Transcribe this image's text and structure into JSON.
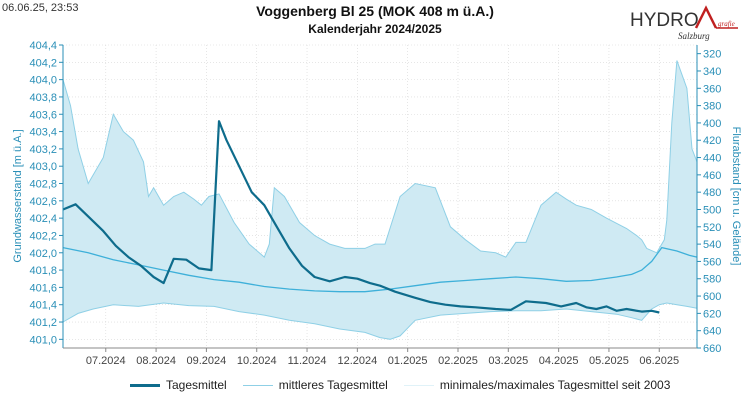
{
  "header": {
    "timestamp": "06.06.25, 23:53",
    "title": "Voggenberg Bl 25 (MOK 408 m ü.A.)",
    "subtitle": "Kalenderjahr 2024/2025"
  },
  "logo": {
    "text_main": "HYDRO",
    "text_sub": "grafie",
    "text_region": "Salzburg"
  },
  "colors": {
    "tagesmittel": "#0e6c8c",
    "mittleres": "#3eb0d9",
    "band_fill": "#cfeaf3",
    "band_line": "#8fd0e6",
    "axis": "#2a8fb7",
    "grid": "#d6d6d6"
  },
  "chart_data": {
    "type": "line",
    "ylabel": "Grundwasserstand [m ü.A.]",
    "y2label": "Flurabstand [cm u. Gelände]",
    "ylim": [
      400.9,
      404.4
    ],
    "y2lim": [
      310,
      660
    ],
    "xlim": [
      0,
      12.6
    ],
    "yticks": [
      "401,0",
      "401,2",
      "401,4",
      "401,6",
      "401,8",
      "402,0",
      "402,2",
      "402,4",
      "402,6",
      "402,8",
      "403,0",
      "403,2",
      "403,4",
      "403,6",
      "403,8",
      "404,0",
      "404,2",
      "404,4"
    ],
    "y2ticks": [
      "320",
      "340",
      "360",
      "380",
      "400",
      "420",
      "440",
      "460",
      "480",
      "500",
      "520",
      "540",
      "560",
      "580",
      "600",
      "620",
      "640",
      "660"
    ],
    "xticks": [
      "07.2024",
      "08.2024",
      "09.2024",
      "10.2024",
      "11.2024",
      "12.2024",
      "01.2025",
      "02.2025",
      "03.2025",
      "04.2025",
      "05.2025",
      "06.2025"
    ],
    "xtick_positions": [
      0.85,
      1.85,
      2.85,
      3.85,
      4.85,
      5.85,
      6.85,
      7.85,
      8.85,
      9.85,
      10.85,
      11.85
    ],
    "legend": [
      "Tagesmittel",
      "mittleres Tagesmittel",
      "minimales/maximales Tagesmittel seit 2003"
    ],
    "series": [
      {
        "name": "Tagesmittel",
        "x": [
          0.0,
          0.25,
          0.5,
          0.8,
          1.05,
          1.3,
          1.55,
          1.8,
          2.0,
          2.2,
          2.45,
          2.7,
          2.95,
          3.1,
          3.25,
          3.5,
          3.75,
          4.0,
          4.25,
          4.5,
          4.75,
          5.0,
          5.3,
          5.6,
          5.85,
          6.1,
          6.3,
          6.6,
          7.0,
          7.3,
          7.6,
          7.9,
          8.2,
          8.6,
          8.9,
          9.2,
          9.6,
          9.9,
          10.2,
          10.4,
          10.6,
          10.8,
          11.0,
          11.2,
          11.5,
          11.7,
          11.85
        ],
        "y": [
          402.5,
          402.56,
          402.42,
          402.25,
          402.08,
          401.95,
          401.85,
          401.72,
          401.65,
          401.93,
          401.92,
          401.82,
          401.8,
          403.52,
          403.3,
          403.0,
          402.7,
          402.55,
          402.3,
          402.05,
          401.85,
          401.72,
          401.67,
          401.72,
          401.7,
          401.65,
          401.62,
          401.55,
          401.48,
          401.43,
          401.4,
          401.38,
          401.37,
          401.35,
          401.34,
          401.44,
          401.42,
          401.38,
          401.42,
          401.37,
          401.35,
          401.38,
          401.33,
          401.35,
          401.32,
          401.33,
          401.31
        ]
      },
      {
        "name": "mittleres Tagesmittel",
        "x": [
          0.0,
          0.5,
          1.0,
          1.5,
          2.0,
          2.5,
          3.0,
          3.5,
          4.0,
          4.5,
          5.0,
          5.5,
          6.0,
          6.5,
          7.0,
          7.5,
          8.0,
          8.5,
          9.0,
          9.5,
          10.0,
          10.5,
          11.0,
          11.3,
          11.5,
          11.7,
          11.9,
          12.2,
          12.45,
          12.6
        ],
        "y": [
          402.06,
          402.0,
          401.92,
          401.86,
          401.8,
          401.74,
          401.69,
          401.66,
          401.61,
          401.58,
          401.56,
          401.55,
          401.55,
          401.58,
          401.62,
          401.66,
          401.68,
          401.7,
          401.72,
          401.7,
          401.67,
          401.68,
          401.72,
          401.75,
          401.8,
          401.9,
          402.06,
          402.02,
          401.97,
          401.95
        ]
      }
    ],
    "band": {
      "name": "minimales/maximales Tagesmittel seit 2003",
      "x_max": [
        0.0,
        0.15,
        0.3,
        0.5,
        0.8,
        1.0,
        1.2,
        1.4,
        1.6,
        1.7,
        1.8,
        2.0,
        2.2,
        2.4,
        2.6,
        2.75,
        2.9,
        3.1,
        3.4,
        3.7,
        4.0,
        4.1,
        4.2,
        4.4,
        4.7,
        5.0,
        5.3,
        5.6,
        5.8,
        6.0,
        6.2,
        6.4,
        6.7,
        7.0,
        7.4,
        7.7,
        8.0,
        8.3,
        8.6,
        8.8,
        9.0,
        9.2,
        9.5,
        9.8,
        10.0,
        10.2,
        10.5,
        10.8,
        11.2,
        11.4,
        11.5,
        11.6,
        11.8,
        11.95,
        12.0,
        12.1,
        12.2,
        12.4,
        12.5,
        12.6
      ],
      "y_max": [
        404.0,
        403.7,
        403.2,
        402.8,
        403.1,
        403.6,
        403.4,
        403.3,
        403.05,
        402.65,
        402.75,
        402.55,
        402.65,
        402.7,
        402.62,
        402.55,
        402.65,
        402.68,
        402.35,
        402.1,
        401.95,
        402.1,
        402.75,
        402.65,
        402.35,
        402.2,
        402.1,
        402.05,
        402.05,
        402.05,
        402.1,
        402.1,
        402.65,
        402.8,
        402.75,
        402.3,
        402.15,
        402.02,
        402.0,
        401.95,
        402.12,
        402.12,
        402.55,
        402.7,
        402.62,
        402.55,
        402.5,
        402.4,
        402.28,
        402.2,
        402.15,
        402.05,
        402.0,
        402.15,
        402.38,
        403.5,
        404.22,
        403.9,
        403.2,
        403.05
      ],
      "x_min": [
        0.0,
        0.3,
        0.6,
        1.0,
        1.5,
        2.0,
        2.5,
        3.0,
        3.5,
        4.0,
        4.5,
        5.0,
        5.5,
        6.0,
        6.3,
        6.5,
        6.7,
        7.0,
        7.5,
        8.0,
        8.5,
        9.0,
        9.5,
        10.0,
        10.5,
        11.0,
        11.3,
        11.5,
        11.7,
        11.85,
        12.0,
        12.2,
        12.4,
        12.6
      ],
      "y_min": [
        401.2,
        401.3,
        401.35,
        401.4,
        401.38,
        401.42,
        401.39,
        401.38,
        401.32,
        401.28,
        401.22,
        401.18,
        401.12,
        401.08,
        401.02,
        401.0,
        401.04,
        401.22,
        401.28,
        401.3,
        401.32,
        401.33,
        401.33,
        401.35,
        401.32,
        401.29,
        401.25,
        401.22,
        401.35,
        401.4,
        401.42,
        401.4,
        401.38,
        401.36
      ]
    }
  }
}
